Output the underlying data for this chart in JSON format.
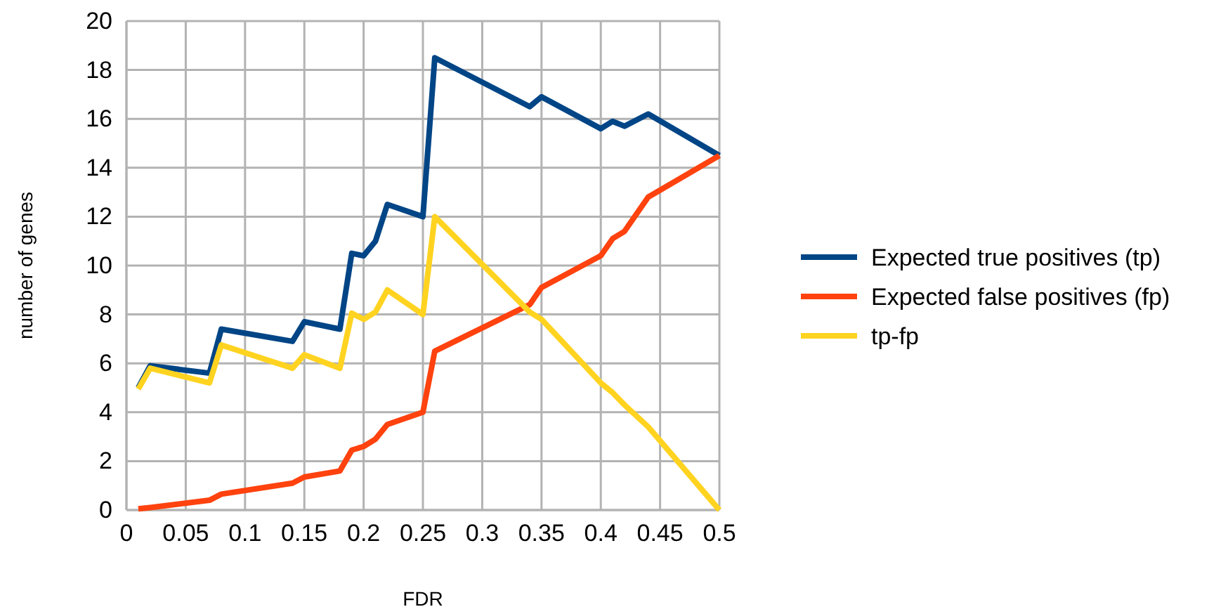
{
  "chart_data": {
    "type": "line",
    "xlabel": "FDR",
    "ylabel": "number of genes",
    "x": [
      0.01,
      0.02,
      0.07,
      0.08,
      0.14,
      0.15,
      0.18,
      0.19,
      0.2,
      0.21,
      0.22,
      0.25,
      0.26,
      0.34,
      0.35,
      0.4,
      0.41,
      0.42,
      0.44,
      0.5
    ],
    "series": [
      {
        "name": "Expected true positives (tp)",
        "color": "#004586",
        "values": [
          5.0,
          5.9,
          5.6,
          7.4,
          6.9,
          7.7,
          7.4,
          10.5,
          10.4,
          11.0,
          12.5,
          12.0,
          18.5,
          16.5,
          16.9,
          15.6,
          15.9,
          15.7,
          16.2,
          14.5
        ]
      },
      {
        "name": "Expected false positives (fp)",
        "color": "#ff420e",
        "values": [
          0.05,
          0.1,
          0.4,
          0.65,
          1.1,
          1.35,
          1.6,
          2.45,
          2.6,
          2.9,
          3.5,
          4.0,
          6.5,
          8.4,
          9.1,
          10.4,
          11.1,
          11.4,
          12.8,
          14.5
        ]
      },
      {
        "name": "tp-fp",
        "color": "#ffd320",
        "values": [
          4.95,
          5.8,
          5.2,
          6.75,
          5.8,
          6.35,
          5.8,
          8.05,
          7.8,
          8.1,
          9.0,
          8.0,
          12.0,
          8.1,
          7.8,
          5.2,
          4.8,
          4.3,
          3.4,
          0
        ]
      }
    ],
    "xlim": [
      0,
      0.5
    ],
    "xticks": [
      0,
      0.05,
      0.1,
      0.15,
      0.2,
      0.25,
      0.3,
      0.35,
      0.4,
      0.45,
      0.5
    ],
    "ylim": [
      0,
      20
    ],
    "yticks": [
      0,
      2,
      4,
      6,
      8,
      10,
      12,
      14,
      16,
      18,
      20
    ],
    "grid": true,
    "legend": "right",
    "marker": "none",
    "line_style": "solid"
  }
}
